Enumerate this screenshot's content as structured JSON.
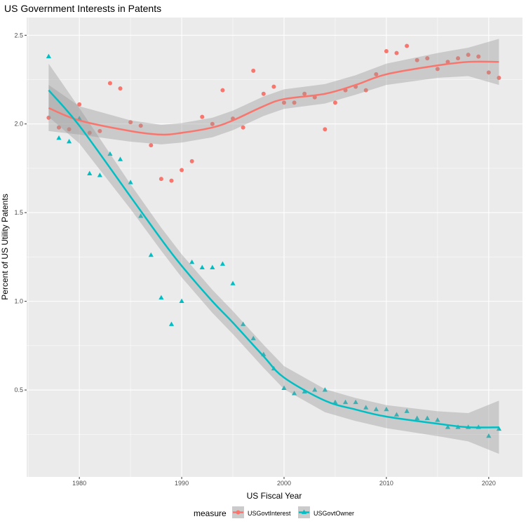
{
  "chart_data": {
    "type": "scatter",
    "title": "US Government Interests in Patents",
    "xlabel": "US Fiscal Year",
    "ylabel": "Percent of US Utility Patents",
    "xlim": [
      1974.85,
      2023.3
    ],
    "ylim": [
      0.01,
      2.6
    ],
    "xticks": [
      1980,
      1990,
      2000,
      2010,
      2020
    ],
    "yticks": [
      0.5,
      1.0,
      1.5,
      2.0,
      2.5
    ],
    "ytick_labels": [
      "0.5",
      "1.0",
      "1.5",
      "2.0",
      "2.5"
    ],
    "grid": true,
    "legend": {
      "title": "measure",
      "placement": "bottom"
    },
    "x": [
      1977,
      1978,
      1979,
      1980,
      1981,
      1982,
      1983,
      1984,
      1985,
      1986,
      1987,
      1988,
      1989,
      1990,
      1991,
      1992,
      1993,
      1994,
      1995,
      1996,
      1997,
      1998,
      1999,
      2000,
      2001,
      2002,
      2003,
      2004,
      2005,
      2006,
      2007,
      2008,
      2009,
      2010,
      2011,
      2012,
      2013,
      2014,
      2015,
      2016,
      2017,
      2018,
      2019,
      2020,
      2021
    ],
    "series": [
      {
        "name": "USGovtInterest",
        "color": "#F8766D",
        "marker": "circle",
        "values": [
          2.035,
          1.98,
          1.97,
          2.11,
          1.95,
          1.96,
          2.23,
          2.2,
          2.01,
          1.99,
          1.88,
          1.69,
          1.68,
          1.74,
          1.79,
          2.04,
          2.0,
          2.19,
          2.03,
          1.98,
          2.3,
          2.17,
          2.21,
          2.12,
          2.12,
          2.17,
          2.15,
          1.97,
          2.12,
          2.19,
          2.21,
          2.19,
          2.28,
          2.41,
          2.4,
          2.44,
          2.36,
          2.37,
          2.31,
          2.35,
          2.37,
          2.39,
          2.38,
          2.29,
          2.26
        ],
        "smooth_x": [
          1977,
          1980,
          1985,
          1988,
          1990,
          1993,
          1995,
          1998,
          2000,
          2004,
          2007,
          2010,
          2015,
          2018,
          2021
        ],
        "smooth_y": [
          2.09,
          2.02,
          1.96,
          1.94,
          1.95,
          1.98,
          2.02,
          2.1,
          2.14,
          2.17,
          2.22,
          2.28,
          2.33,
          2.35,
          2.35
        ],
        "band_halfwidth": [
          0.13,
          0.08,
          0.06,
          0.055,
          0.055,
          0.055,
          0.055,
          0.055,
          0.055,
          0.055,
          0.055,
          0.06,
          0.07,
          0.08,
          0.13
        ]
      },
      {
        "name": "USGovtOwner",
        "color": "#00BFC4",
        "marker": "triangle",
        "values": [
          2.38,
          1.92,
          1.9,
          2.03,
          1.72,
          1.71,
          1.83,
          1.8,
          1.67,
          1.48,
          1.26,
          1.02,
          0.87,
          1.0,
          1.22,
          1.19,
          1.19,
          1.21,
          1.1,
          0.87,
          0.79,
          0.7,
          0.62,
          0.51,
          0.48,
          0.49,
          0.5,
          0.5,
          0.43,
          0.43,
          0.43,
          0.4,
          0.39,
          0.39,
          0.36,
          0.38,
          0.34,
          0.34,
          0.33,
          0.29,
          0.29,
          0.29,
          0.29,
          0.24,
          0.28
        ],
        "smooth_x": [
          1977,
          1980,
          1985,
          1988,
          1990,
          1993,
          1995,
          1998,
          2000,
          2004,
          2007,
          2010,
          2015,
          2018,
          2021
        ],
        "smooth_y": [
          2.19,
          1.99,
          1.59,
          1.35,
          1.2,
          1.0,
          0.88,
          0.69,
          0.57,
          0.44,
          0.39,
          0.35,
          0.31,
          0.29,
          0.29
        ],
        "band_halfwidth": [
          0.15,
          0.1,
          0.07,
          0.065,
          0.065,
          0.065,
          0.065,
          0.065,
          0.065,
          0.065,
          0.065,
          0.065,
          0.07,
          0.08,
          0.15
        ]
      }
    ]
  }
}
